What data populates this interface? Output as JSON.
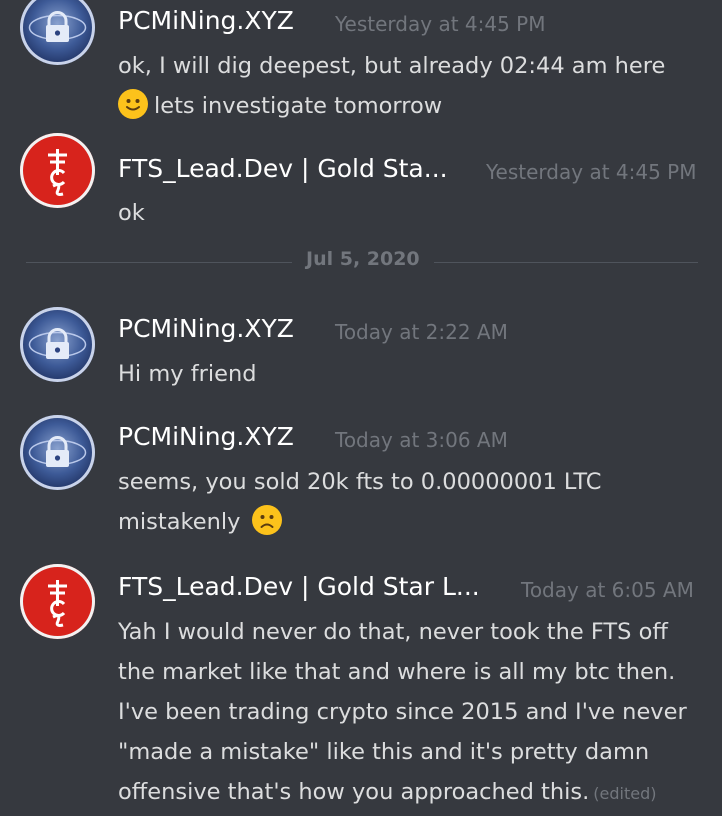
{
  "messages": [
    {
      "author": "PCMiNing.XYZ",
      "timestamp": "Yesterday at 4:45 PM",
      "lines": [
        "ok, I will dig deepest, but already 02:44 am here",
        "lets investigate tomorrow"
      ],
      "emoji": "slightly-smiling-face"
    },
    {
      "author": "FTS_Lead.Dev | Gold Sta...",
      "timestamp": "Yesterday at 4:45 PM",
      "lines": [
        "ok"
      ]
    },
    {
      "author": "PCMiNing.XYZ",
      "timestamp": "Today at 2:22 AM",
      "lines": [
        "Hi my friend"
      ]
    },
    {
      "author": "PCMiNing.XYZ",
      "timestamp": "Today at 3:06 AM",
      "lines": [
        "seems, you sold 20k fts to 0.00000001 LTC",
        "mistakenly"
      ],
      "emoji": "frowning-face"
    },
    {
      "author": "FTS_Lead.Dev | Gold Star L...",
      "timestamp": "Today at 6:05 AM",
      "lines": [
        "Yah I would never do that, never took the FTS off",
        "the market like that and where is all my btc then.",
        "I've been trading crypto since 2015 and I've never",
        "\"made a mistake\" like this and it's pretty damn",
        "offensive that's how you approached this."
      ],
      "edited_label": "(edited)"
    }
  ],
  "date_divider": "Jul 5, 2020"
}
